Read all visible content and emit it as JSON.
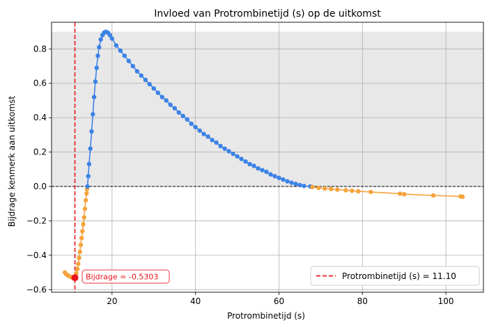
{
  "chart_data": {
    "type": "scatter",
    "title": "Invloed van Protrombinetijd (s) op de uitkomst",
    "xlabel": "Protrombinetijd (s)",
    "ylabel": "Bijdrage kenmerk aan uitkomst",
    "xlim": [
      5.5,
      109
    ],
    "ylim": [
      -0.615,
      0.955
    ],
    "xticks": [
      20,
      40,
      60,
      80,
      100
    ],
    "yticks": [
      -0.6,
      -0.4,
      -0.2,
      0.0,
      0.2,
      0.4,
      0.6,
      0.8
    ],
    "xtick_labels": [
      "20",
      "40",
      "60",
      "80",
      "100"
    ],
    "ytick_labels": [
      "−0.6",
      "−0.4",
      "−0.2",
      "0.0",
      "0.2",
      "0.4",
      "0.6",
      "0.8"
    ],
    "grid": true,
    "shaded_band": {
      "y_from": 0.0,
      "y_to": 0.9,
      "color": "#e8e8e8"
    },
    "zero_line": {
      "y": 0.0,
      "style": "dashed",
      "color": "#000000"
    },
    "reference_line": {
      "x": 11.1,
      "style": "dashed",
      "color": "#e8141b",
      "legend": "Protrombinetijd (s) = 11.10"
    },
    "highlight_point": {
      "x": 11.1,
      "y": -0.5303,
      "color": "#e8141b",
      "annotation": "Bijdrage = -0.5303"
    },
    "legend_position": "lower-right",
    "series": [
      {
        "color": "#f5a33c",
        "points": [
          [
            8.7,
            -0.5
          ],
          [
            9.0,
            -0.51
          ],
          [
            9.3,
            -0.515
          ],
          [
            9.6,
            -0.52
          ],
          [
            10.0,
            -0.525
          ],
          [
            10.4,
            -0.53
          ],
          [
            10.8,
            -0.533
          ],
          [
            11.1,
            -0.5303
          ],
          [
            11.4,
            -0.505
          ],
          [
            11.7,
            -0.48
          ],
          [
            11.9,
            -0.45
          ],
          [
            12.1,
            -0.415
          ],
          [
            12.3,
            -0.38
          ],
          [
            12.5,
            -0.34
          ],
          [
            12.7,
            -0.3
          ],
          [
            12.9,
            -0.26
          ],
          [
            13.1,
            -0.22
          ],
          [
            13.3,
            -0.18
          ],
          [
            13.5,
            -0.13
          ],
          [
            13.7,
            -0.08
          ],
          [
            13.9,
            -0.04
          ],
          [
            14.0,
            -0.015
          ]
        ]
      },
      {
        "color": "#3b82e6",
        "points": [
          [
            14.1,
            0.0
          ],
          [
            14.3,
            0.06
          ],
          [
            14.5,
            0.13
          ],
          [
            14.8,
            0.22
          ],
          [
            15.1,
            0.32
          ],
          [
            15.4,
            0.42
          ],
          [
            15.7,
            0.52
          ],
          [
            16.0,
            0.61
          ],
          [
            16.3,
            0.69
          ],
          [
            16.6,
            0.76
          ],
          [
            16.9,
            0.81
          ],
          [
            17.3,
            0.855
          ],
          [
            17.7,
            0.88
          ],
          [
            18.1,
            0.895
          ],
          [
            18.5,
            0.9
          ],
          [
            19.0,
            0.895
          ],
          [
            19.5,
            0.88
          ],
          [
            20.0,
            0.86
          ],
          [
            21.0,
            0.82
          ],
          [
            22.0,
            0.79
          ],
          [
            23.0,
            0.76
          ],
          [
            24.0,
            0.73
          ],
          [
            25.0,
            0.7
          ],
          [
            26.0,
            0.67
          ],
          [
            27.0,
            0.645
          ],
          [
            28.0,
            0.62
          ],
          [
            29.0,
            0.595
          ],
          [
            30.0,
            0.57
          ],
          [
            31.0,
            0.545
          ],
          [
            32.0,
            0.52
          ],
          [
            33.0,
            0.5
          ],
          [
            34.0,
            0.475
          ],
          [
            35.0,
            0.455
          ],
          [
            36.0,
            0.43
          ],
          [
            37.0,
            0.41
          ],
          [
            38.0,
            0.39
          ],
          [
            39.0,
            0.365
          ],
          [
            40.0,
            0.345
          ],
          [
            41.0,
            0.325
          ],
          [
            42.0,
            0.305
          ],
          [
            43.0,
            0.29
          ],
          [
            44.0,
            0.27
          ],
          [
            45.0,
            0.255
          ],
          [
            46.0,
            0.235
          ],
          [
            47.0,
            0.22
          ],
          [
            48.0,
            0.205
          ],
          [
            49.0,
            0.19
          ],
          [
            50.0,
            0.175
          ],
          [
            51.0,
            0.16
          ],
          [
            52.0,
            0.145
          ],
          [
            53.0,
            0.13
          ],
          [
            54.0,
            0.12
          ],
          [
            55.0,
            0.105
          ],
          [
            56.0,
            0.095
          ],
          [
            57.0,
            0.085
          ],
          [
            58.0,
            0.07
          ],
          [
            59.0,
            0.06
          ],
          [
            60.0,
            0.05
          ],
          [
            61.0,
            0.04
          ],
          [
            62.0,
            0.03
          ],
          [
            63.0,
            0.022
          ],
          [
            64.0,
            0.015
          ],
          [
            65.0,
            0.008
          ],
          [
            66.0,
            0.003
          ],
          [
            67.5,
            0.0
          ]
        ]
      },
      {
        "color": "#f5a33c",
        "points": [
          [
            68.0,
            -0.003
          ],
          [
            69.5,
            -0.008
          ],
          [
            71.0,
            -0.012
          ],
          [
            72.5,
            -0.015
          ],
          [
            74.0,
            -0.018
          ],
          [
            76.0,
            -0.022
          ],
          [
            77.5,
            -0.025
          ],
          [
            79.0,
            -0.028
          ],
          [
            82.0,
            -0.032
          ],
          [
            89.0,
            -0.042
          ],
          [
            90.0,
            -0.045
          ],
          [
            97.0,
            -0.052
          ],
          [
            103.5,
            -0.058
          ],
          [
            104.0,
            -0.06
          ]
        ]
      }
    ]
  }
}
